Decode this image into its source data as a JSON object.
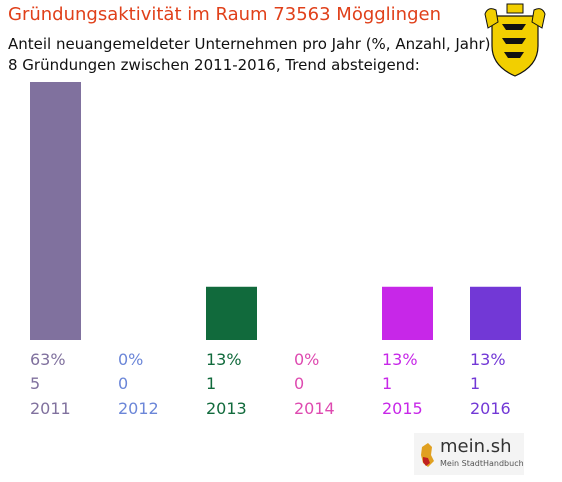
{
  "header": {
    "title": "Gründungsaktivität im Raum 73563 Mögglingen",
    "subtitle_line1": "Anteil neuangemeldeter Unternehmen pro Jahr (%, Anzahl, Jahr)",
    "subtitle_line2": "8 Gründungen zwischen 2011-2016, Trend absteigend:"
  },
  "logo": {
    "brand": "mein.sh",
    "tagline": "Mein StadtHandbuch"
  },
  "colors": {
    "title": "#e0401a",
    "coat_yellow": "#f2cf00",
    "coat_black": "#111111"
  },
  "chart_data": {
    "type": "bar",
    "categories": [
      "2011",
      "2012",
      "2013",
      "2014",
      "2015",
      "2016"
    ],
    "values": [
      63,
      0,
      13,
      0,
      13,
      13
    ],
    "counts": [
      5,
      0,
      1,
      0,
      1,
      1
    ],
    "percent_labels": [
      "63%",
      "0%",
      "13%",
      "0%",
      "13%",
      "13%"
    ],
    "colors": [
      "#80719e",
      "#6b86d8",
      "#116a3c",
      "#de4ab0",
      "#c727e8",
      "#7238d6"
    ],
    "ylim": [
      0,
      63
    ],
    "xlabel": "",
    "ylabel": "",
    "grid": false,
    "legend": "none"
  }
}
